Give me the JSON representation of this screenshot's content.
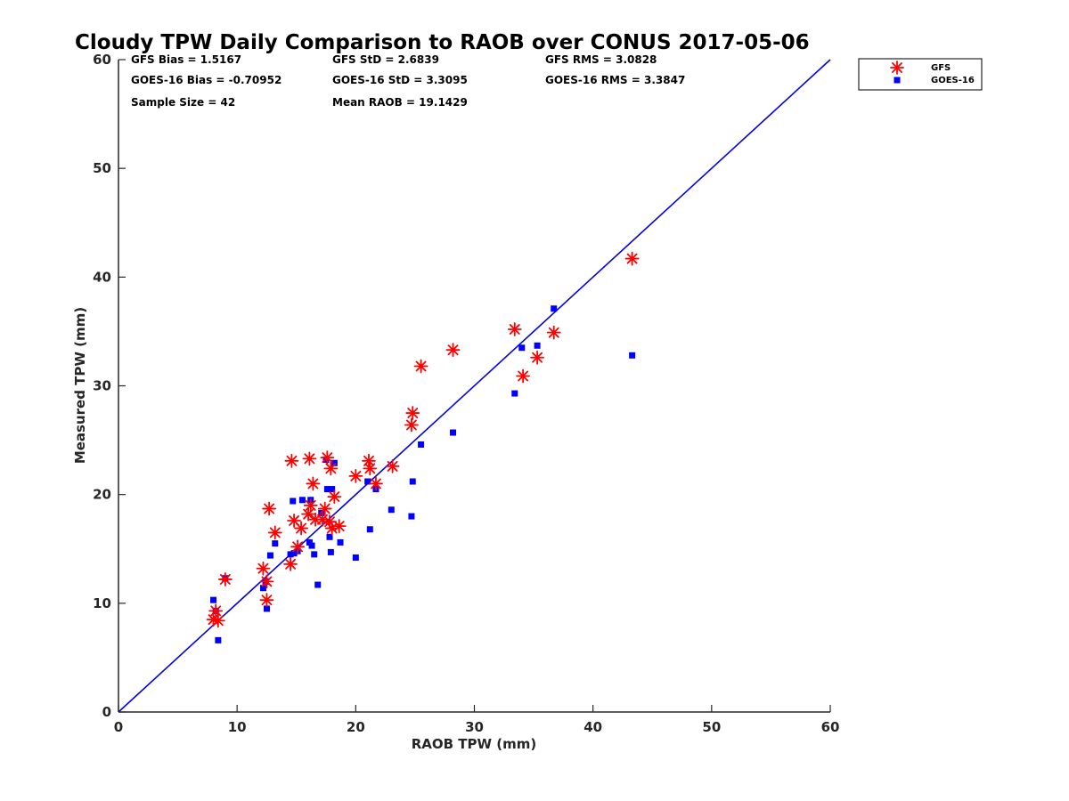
{
  "chart_data": {
    "type": "scatter",
    "title": "Cloudy TPW Daily Comparison to RAOB over CONUS 2017-05-06",
    "xlabel": "RAOB TPW (mm)",
    "ylabel": "Measured TPW (mm)",
    "xlim": [
      0,
      60
    ],
    "ylim": [
      0,
      60
    ],
    "xticks": [
      "0",
      "10",
      "20",
      "30",
      "40",
      "50",
      "60"
    ],
    "yticks": [
      "0",
      "10",
      "20",
      "30",
      "40",
      "50",
      "60"
    ],
    "grid": false,
    "legend_position": "top-right-outside",
    "reference_line": {
      "x": [
        0,
        60
      ],
      "y": [
        0,
        60
      ],
      "color": "#0000e6"
    },
    "stats": [
      "GFS Bias = 1.5167",
      "GFS StD = 2.6839",
      "GFS RMS = 3.0828",
      "GOES-16 Bias = -0.70952",
      "GOES-16 StD = 3.3095",
      "GOES-16 RMS = 3.3847",
      "Sample Size = 42",
      "Mean RAOB = 19.1429"
    ],
    "series": [
      {
        "name": "GFS",
        "marker": "asterisk",
        "color": "#ff0000",
        "points": [
          [
            8.0,
            8.5
          ],
          [
            8.2,
            9.3
          ],
          [
            8.4,
            8.4
          ],
          [
            9.0,
            12.2
          ],
          [
            12.2,
            13.2
          ],
          [
            12.5,
            10.3
          ],
          [
            12.5,
            12.0
          ],
          [
            12.7,
            18.7
          ],
          [
            13.2,
            16.5
          ],
          [
            14.5,
            13.6
          ],
          [
            14.6,
            23.1
          ],
          [
            14.8,
            17.6
          ],
          [
            15.1,
            15.2
          ],
          [
            15.4,
            16.9
          ],
          [
            16.0,
            18.2
          ],
          [
            16.1,
            23.3
          ],
          [
            16.2,
            19.0
          ],
          [
            16.4,
            21.0
          ],
          [
            16.6,
            17.7
          ],
          [
            17.2,
            17.7
          ],
          [
            17.4,
            18.7
          ],
          [
            17.6,
            23.4
          ],
          [
            17.8,
            17.5
          ],
          [
            17.9,
            22.4
          ],
          [
            18.0,
            16.9
          ],
          [
            18.2,
            19.8
          ],
          [
            18.6,
            17.1
          ],
          [
            20.0,
            21.7
          ],
          [
            21.1,
            23.1
          ],
          [
            21.2,
            22.4
          ],
          [
            21.7,
            21.0
          ],
          [
            23.1,
            22.6
          ],
          [
            24.7,
            26.4
          ],
          [
            24.8,
            27.5
          ],
          [
            25.5,
            31.8
          ],
          [
            28.2,
            33.3
          ],
          [
            33.4,
            35.2
          ],
          [
            34.1,
            30.9
          ],
          [
            35.3,
            32.6
          ],
          [
            36.7,
            34.9
          ],
          [
            43.3,
            41.7
          ]
        ]
      },
      {
        "name": "GOES-16",
        "marker": "square",
        "color": "#0000ff",
        "points": [
          [
            8.0,
            10.3
          ],
          [
            8.2,
            9.3
          ],
          [
            8.4,
            6.6
          ],
          [
            9.0,
            12.3
          ],
          [
            12.2,
            11.4
          ],
          [
            12.4,
            12.0
          ],
          [
            12.5,
            9.5
          ],
          [
            12.8,
            14.4
          ],
          [
            13.2,
            15.5
          ],
          [
            14.5,
            14.5
          ],
          [
            14.7,
            19.4
          ],
          [
            14.8,
            14.6
          ],
          [
            15.1,
            14.8
          ],
          [
            15.5,
            19.5
          ],
          [
            16.1,
            15.6
          ],
          [
            16.2,
            19.5
          ],
          [
            16.3,
            15.3
          ],
          [
            16.5,
            14.5
          ],
          [
            16.8,
            11.7
          ],
          [
            17.1,
            18.3
          ],
          [
            17.5,
            23.2
          ],
          [
            17.6,
            20.5
          ],
          [
            17.8,
            16.1
          ],
          [
            17.9,
            14.7
          ],
          [
            18.0,
            20.5
          ],
          [
            18.2,
            22.9
          ],
          [
            18.7,
            15.6
          ],
          [
            20.0,
            14.2
          ],
          [
            21.0,
            21.2
          ],
          [
            21.2,
            16.8
          ],
          [
            21.7,
            20.5
          ],
          [
            23.0,
            18.6
          ],
          [
            24.7,
            18.0
          ],
          [
            24.8,
            21.2
          ],
          [
            25.5,
            24.6
          ],
          [
            28.2,
            25.7
          ],
          [
            33.4,
            29.3
          ],
          [
            34.0,
            33.5
          ],
          [
            35.3,
            33.7
          ],
          [
            36.7,
            37.1
          ],
          [
            43.3,
            32.8
          ]
        ]
      }
    ]
  }
}
